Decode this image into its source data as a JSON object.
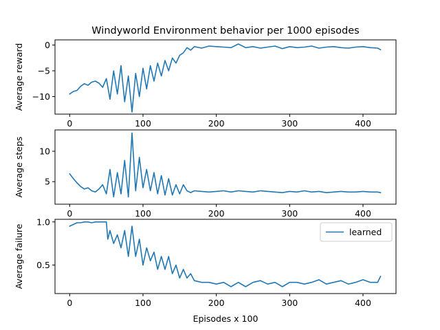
{
  "chart_data": {
    "type": "line",
    "title": "Windyworld Environment behavior per 1000 episodes",
    "xlabel": "Episodes x 100",
    "color": "#1f77b4",
    "xlim": [
      -20,
      445
    ],
    "xticks": [
      0,
      100,
      200,
      300,
      400
    ],
    "legend": {
      "label": "learned",
      "placement": "top-right",
      "subplot": 2
    },
    "subplots": [
      {
        "ylabel": "Average reward",
        "ylim": [
          -13.4,
          1.0
        ],
        "yticks": [
          0,
          -5,
          -10
        ],
        "ytick_labels": [
          "0",
          "−5",
          "−10"
        ],
        "x": [
          0,
          5,
          10,
          15,
          20,
          25,
          30,
          35,
          40,
          45,
          50,
          55,
          60,
          65,
          70,
          75,
          80,
          85,
          90,
          95,
          100,
          105,
          110,
          115,
          120,
          125,
          130,
          135,
          140,
          145,
          150,
          155,
          160,
          165,
          170,
          180,
          190,
          200,
          210,
          220,
          230,
          240,
          250,
          260,
          270,
          280,
          290,
          300,
          310,
          320,
          330,
          340,
          350,
          360,
          370,
          380,
          390,
          400,
          410,
          420,
          424
        ],
        "values": [
          -9.5,
          -9.0,
          -8.8,
          -8.0,
          -7.5,
          -7.8,
          -7.2,
          -7.0,
          -7.4,
          -8.2,
          -6.5,
          -10.5,
          -5.0,
          -9.5,
          -4.0,
          -11.0,
          -6.0,
          -13.0,
          -5.5,
          -10.0,
          -4.5,
          -8.5,
          -4.0,
          -7.0,
          -3.5,
          -6.0,
          -3.0,
          -5.0,
          -2.5,
          -3.5,
          -2.0,
          -1.5,
          -0.5,
          -1.0,
          -0.3,
          -0.6,
          -0.2,
          -0.3,
          -0.4,
          -0.5,
          0.2,
          -0.5,
          -0.3,
          -0.6,
          -0.4,
          -0.2,
          -0.7,
          -0.3,
          -0.5,
          -0.4,
          -0.2,
          -0.6,
          -0.4,
          -0.3,
          -0.5,
          -0.6,
          -0.4,
          -0.3,
          -0.5,
          -0.6,
          -0.9
        ]
      },
      {
        "ylabel": "Average steps",
        "ylim": [
          1.3,
          13.5
        ],
        "yticks": [
          5,
          10
        ],
        "ytick_labels": [
          "5",
          "10"
        ],
        "x": [
          0,
          5,
          10,
          15,
          20,
          25,
          30,
          35,
          40,
          45,
          50,
          55,
          60,
          65,
          70,
          75,
          80,
          85,
          90,
          95,
          100,
          105,
          110,
          115,
          120,
          125,
          130,
          135,
          140,
          145,
          150,
          155,
          160,
          165,
          170,
          180,
          190,
          200,
          210,
          220,
          230,
          240,
          250,
          260,
          270,
          280,
          290,
          300,
          310,
          320,
          330,
          340,
          350,
          360,
          370,
          380,
          390,
          400,
          410,
          420,
          424
        ],
        "values": [
          6.3,
          5.5,
          4.8,
          4.2,
          3.8,
          4.0,
          3.5,
          3.3,
          3.8,
          4.5,
          3.0,
          7.0,
          2.5,
          6.5,
          3.0,
          8.5,
          2.5,
          13.0,
          3.5,
          9.0,
          4.0,
          7.0,
          3.5,
          6.5,
          3.0,
          6.0,
          2.8,
          5.5,
          2.8,
          4.5,
          3.0,
          4.5,
          3.5,
          3.2,
          3.5,
          3.4,
          3.3,
          3.4,
          3.5,
          3.3,
          3.5,
          3.4,
          3.3,
          3.5,
          3.4,
          3.3,
          3.2,
          3.4,
          3.3,
          3.5,
          3.3,
          3.4,
          3.2,
          3.3,
          3.4,
          3.3,
          3.3,
          3.4,
          3.3,
          3.3,
          3.2
        ]
      },
      {
        "ylabel": "Average failure",
        "ylim": [
          0.17,
          1.03
        ],
        "yticks": [
          0.5,
          1.0
        ],
        "ytick_labels": [
          "0.5",
          "1.0"
        ],
        "x": [
          0,
          5,
          10,
          15,
          20,
          25,
          30,
          35,
          40,
          45,
          50,
          52,
          55,
          60,
          65,
          70,
          75,
          80,
          85,
          90,
          95,
          100,
          105,
          110,
          115,
          120,
          125,
          130,
          135,
          140,
          145,
          150,
          155,
          160,
          165,
          170,
          180,
          190,
          200,
          210,
          220,
          230,
          240,
          250,
          260,
          270,
          280,
          290,
          300,
          310,
          320,
          330,
          340,
          350,
          360,
          370,
          380,
          390,
          400,
          410,
          420,
          424
        ],
        "values": [
          0.95,
          0.97,
          0.99,
          0.99,
          1.0,
          1.0,
          0.99,
          1.0,
          1.0,
          1.0,
          1.0,
          0.8,
          0.9,
          0.75,
          0.85,
          0.7,
          0.9,
          0.6,
          0.95,
          0.6,
          0.8,
          0.5,
          0.7,
          0.55,
          0.65,
          0.45,
          0.6,
          0.45,
          0.6,
          0.4,
          0.5,
          0.35,
          0.45,
          0.35,
          0.4,
          0.32,
          0.3,
          0.3,
          0.28,
          0.3,
          0.25,
          0.3,
          0.25,
          0.3,
          0.32,
          0.28,
          0.3,
          0.25,
          0.3,
          0.3,
          0.28,
          0.3,
          0.33,
          0.28,
          0.3,
          0.32,
          0.28,
          0.3,
          0.33,
          0.3,
          0.3,
          0.37
        ]
      }
    ]
  }
}
